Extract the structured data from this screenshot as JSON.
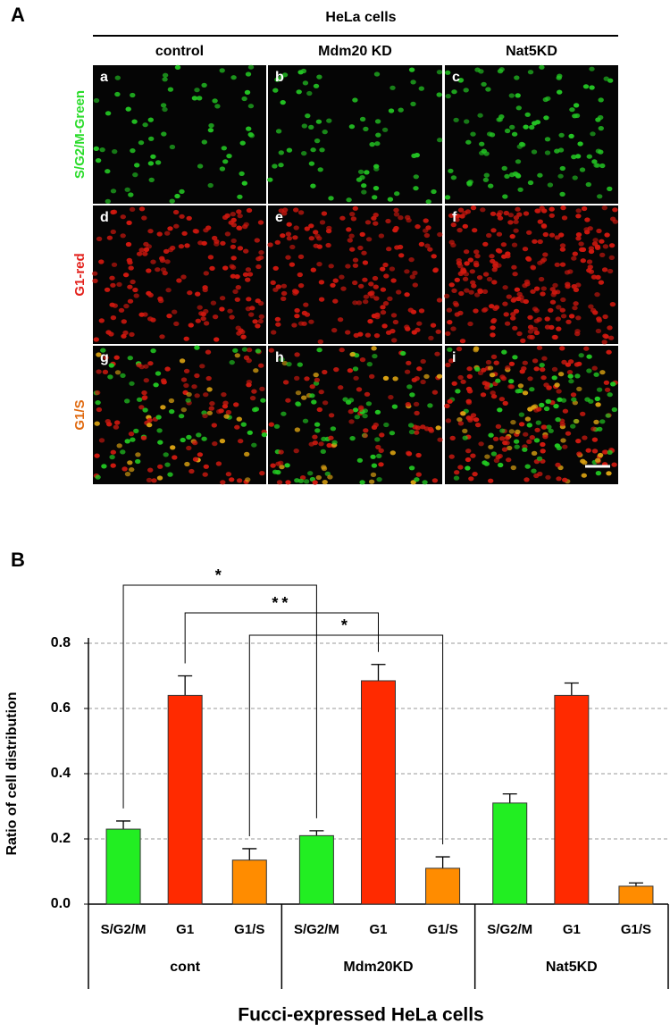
{
  "panel_a": {
    "label": "A",
    "title": "HeLa cells",
    "columns": [
      "control",
      "Mdm20 KD",
      "Nat5KD"
    ],
    "rows": [
      "S/G2/M-Green",
      "G1-red",
      "G1/S"
    ],
    "panel_letters": [
      "a",
      "b",
      "c",
      "d",
      "e",
      "f",
      "g",
      "h",
      "i"
    ]
  },
  "chart_data": {
    "type": "bar",
    "panel_label": "B",
    "y_label": "Ratio of cell distribution",
    "x_label": "Fucci-expressed HeLa cells",
    "groups": [
      "cont",
      "Mdm20KD",
      "Nat5KD"
    ],
    "categories": [
      "S/G2/M",
      "G1",
      "G1/S",
      "S/G2/M",
      "G1",
      "G1/S",
      "S/G2/M",
      "G1",
      "G1/S"
    ],
    "values": [
      0.23,
      0.64,
      0.135,
      0.21,
      0.685,
      0.11,
      0.31,
      0.64,
      0.055
    ],
    "errors": [
      0.025,
      0.06,
      0.035,
      0.015,
      0.05,
      0.035,
      0.028,
      0.038,
      0.01
    ],
    "colors": [
      "#22ee22",
      "#ff2a00",
      "#ff8c00",
      "#22ee22",
      "#ff2a00",
      "#ff8c00",
      "#22ee22",
      "#ff2a00",
      "#ff8c00"
    ],
    "ylim": [
      0,
      0.8
    ],
    "yticks": [
      {
        "value": 0,
        "label": "0.0"
      },
      0.2,
      0.4,
      0.6,
      0.8
    ],
    "grid": true,
    "significance": [
      "*",
      "**",
      "*"
    ]
  }
}
